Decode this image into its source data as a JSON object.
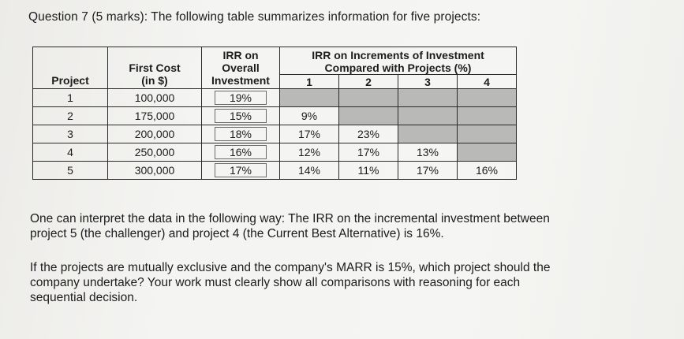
{
  "question": "Question 7 (5 marks): The following table summarizes information for five projects:",
  "table": {
    "headers": {
      "project": "Project",
      "first_cost_line1": "First Cost",
      "first_cost_line2": "(in $)",
      "irr_overall_line1": "IRR on",
      "irr_overall_line2": "Overall",
      "irr_overall_line3": "Investment",
      "irr_incr_line1": "IRR on Increments of Investment",
      "irr_incr_line2": "Compared with Projects (%)",
      "incr_cols": [
        "1",
        "2",
        "3",
        "4"
      ]
    },
    "rows": [
      {
        "project": "1",
        "first_cost": "100,000",
        "irr_overall": "19%",
        "incr": [
          "",
          "",
          "",
          ""
        ]
      },
      {
        "project": "2",
        "first_cost": "175,000",
        "irr_overall": "15%",
        "incr": [
          "9%",
          "",
          "",
          ""
        ]
      },
      {
        "project": "3",
        "first_cost": "200,000",
        "irr_overall": "18%",
        "incr": [
          "17%",
          "23%",
          "",
          ""
        ]
      },
      {
        "project": "4",
        "first_cost": "250,000",
        "irr_overall": "16%",
        "incr": [
          "12%",
          "17%",
          "13%",
          ""
        ]
      },
      {
        "project": "5",
        "first_cost": "300,000",
        "irr_overall": "17%",
        "incr": [
          "14%",
          "11%",
          "17%",
          "16%"
        ]
      }
    ]
  },
  "paragraph1": [
    "One can interpret the data in the following way: The IRR on the incremental investment between",
    "project 5 (the challenger) and project 4 (the Current Best Alternative) is 16%."
  ],
  "paragraph2": [
    "If the projects are mutually exclusive and the company's MARR is 15%, which project should the",
    "company undertake?  Your work must clearly show all comparisons with reasoning for each",
    "sequential decision."
  ]
}
